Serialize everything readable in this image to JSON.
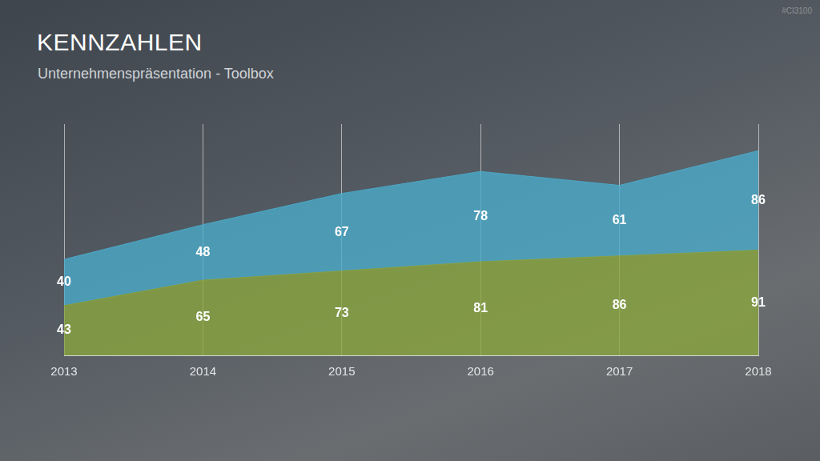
{
  "chart_data": {
    "type": "area",
    "title": "KENNZAHLEN",
    "subtitle": "Unternehmenspräsentation - Toolbox",
    "annotations": [
      "#CI3100"
    ],
    "categories": [
      "2013",
      "2014",
      "2015",
      "2016",
      "2017",
      "2018"
    ],
    "series": [
      {
        "color": "#8aa63e",
        "values": [
          43,
          65,
          73,
          81,
          86,
          91
        ]
      },
      {
        "color": "#4aaccc",
        "values": [
          40,
          48,
          67,
          78,
          61,
          86
        ]
      }
    ],
    "stacked": true,
    "ylim": [
      0,
      200
    ],
    "grid": true,
    "data_labels": true,
    "tick_labels": "x"
  }
}
